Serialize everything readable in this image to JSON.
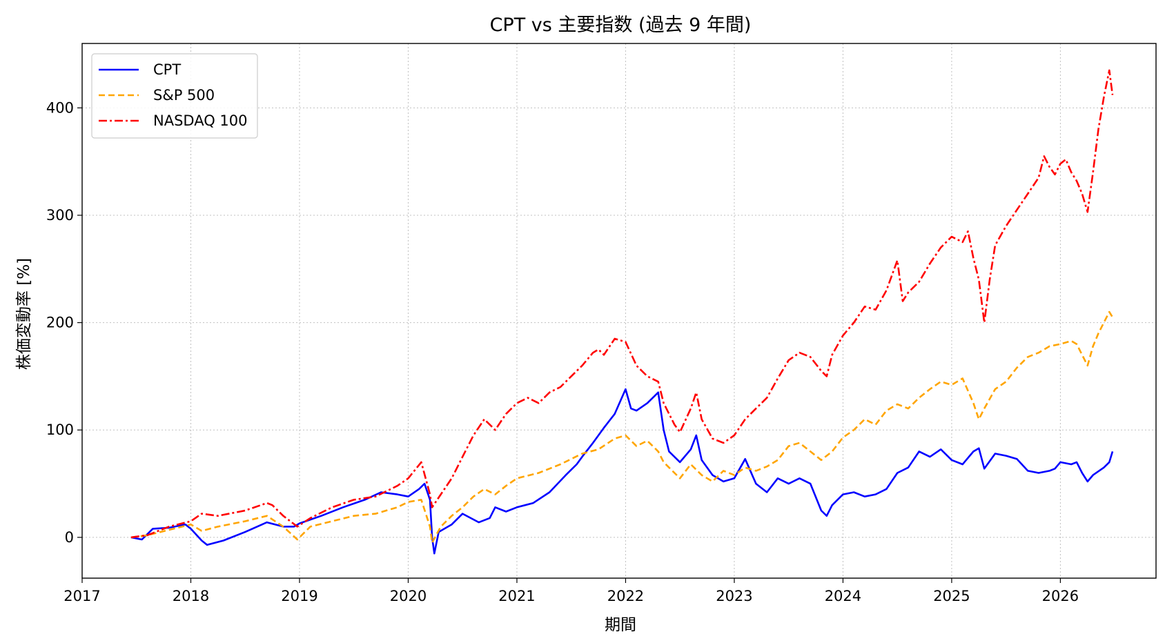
{
  "chart_data": {
    "type": "line",
    "title": "CPT vs 主要指数 (過去 9 年間)",
    "xlabel": "期間",
    "ylabel": "株価変動率 [%]",
    "xlim": [
      2017.0,
      2026.88
    ],
    "ylim": [
      -38,
      460
    ],
    "x_ticks": [
      2017,
      2018,
      2019,
      2020,
      2021,
      2022,
      2023,
      2024,
      2025,
      2026
    ],
    "x_tick_labels": [
      "2017",
      "2018",
      "2019",
      "2020",
      "2021",
      "2022",
      "2023",
      "2024",
      "2025",
      "2026"
    ],
    "y_ticks": [
      0,
      100,
      200,
      300,
      400
    ],
    "y_tick_labels": [
      "0",
      "100",
      "200",
      "300",
      "400"
    ],
    "grid": true,
    "legend_position": "top-left",
    "series": [
      {
        "name": "CPT",
        "color": "#0000ff",
        "style": "solid",
        "points": [
          [
            2017.45,
            0
          ],
          [
            2017.55,
            -2
          ],
          [
            2017.65,
            8
          ],
          [
            2017.8,
            9
          ],
          [
            2017.95,
            12
          ],
          [
            2018.0,
            8
          ],
          [
            2018.1,
            -3
          ],
          [
            2018.15,
            -7
          ],
          [
            2018.3,
            -3
          ],
          [
            2018.5,
            5
          ],
          [
            2018.7,
            14
          ],
          [
            2018.85,
            10
          ],
          [
            2018.95,
            10
          ],
          [
            2019.0,
            13
          ],
          [
            2019.2,
            20
          ],
          [
            2019.4,
            28
          ],
          [
            2019.6,
            35
          ],
          [
            2019.75,
            42
          ],
          [
            2019.9,
            40
          ],
          [
            2020.0,
            38
          ],
          [
            2020.1,
            45
          ],
          [
            2020.15,
            50
          ],
          [
            2020.2,
            35
          ],
          [
            2020.22,
            0
          ],
          [
            2020.24,
            -15
          ],
          [
            2020.28,
            5
          ],
          [
            2020.4,
            12
          ],
          [
            2020.5,
            22
          ],
          [
            2020.65,
            14
          ],
          [
            2020.75,
            18
          ],
          [
            2020.8,
            28
          ],
          [
            2020.9,
            24
          ],
          [
            2021.0,
            28
          ],
          [
            2021.15,
            32
          ],
          [
            2021.3,
            42
          ],
          [
            2021.45,
            58
          ],
          [
            2021.55,
            68
          ],
          [
            2021.6,
            75
          ],
          [
            2021.7,
            88
          ],
          [
            2021.8,
            102
          ],
          [
            2021.9,
            115
          ],
          [
            2022.0,
            138
          ],
          [
            2022.05,
            120
          ],
          [
            2022.1,
            118
          ],
          [
            2022.2,
            125
          ],
          [
            2022.3,
            135
          ],
          [
            2022.35,
            100
          ],
          [
            2022.4,
            80
          ],
          [
            2022.5,
            70
          ],
          [
            2022.6,
            82
          ],
          [
            2022.65,
            95
          ],
          [
            2022.7,
            72
          ],
          [
            2022.8,
            58
          ],
          [
            2022.9,
            52
          ],
          [
            2023.0,
            55
          ],
          [
            2023.1,
            73
          ],
          [
            2023.2,
            50
          ],
          [
            2023.3,
            42
          ],
          [
            2023.4,
            55
          ],
          [
            2023.5,
            50
          ],
          [
            2023.6,
            55
          ],
          [
            2023.7,
            50
          ],
          [
            2023.8,
            25
          ],
          [
            2023.85,
            20
          ],
          [
            2023.9,
            30
          ],
          [
            2024.0,
            40
          ],
          [
            2024.1,
            42
          ],
          [
            2024.2,
            38
          ],
          [
            2024.3,
            40
          ],
          [
            2024.4,
            45
          ],
          [
            2024.5,
            60
          ],
          [
            2024.6,
            65
          ],
          [
            2024.7,
            80
          ],
          [
            2024.8,
            75
          ],
          [
            2024.9,
            82
          ],
          [
            2025.0,
            72
          ],
          [
            2025.1,
            68
          ],
          [
            2025.2,
            80
          ],
          [
            2025.25,
            83
          ],
          [
            2025.3,
            64
          ],
          [
            2025.4,
            78
          ],
          [
            2025.5,
            76
          ],
          [
            2025.6,
            73
          ],
          [
            2025.7,
            62
          ],
          [
            2025.8,
            60
          ],
          [
            2025.9,
            62
          ],
          [
            2025.95,
            64
          ],
          [
            2026.0,
            70
          ],
          [
            2026.1,
            68
          ],
          [
            2026.15,
            70
          ],
          [
            2026.2,
            60
          ],
          [
            2026.25,
            52
          ],
          [
            2026.3,
            58
          ],
          [
            2026.4,
            65
          ],
          [
            2026.45,
            70
          ],
          [
            2026.48,
            80
          ]
        ]
      },
      {
        "name": "S&P 500",
        "color": "#ffa500",
        "style": "dashed",
        "points": [
          [
            2017.45,
            0
          ],
          [
            2017.6,
            2
          ],
          [
            2017.8,
            7
          ],
          [
            2018.0,
            12
          ],
          [
            2018.1,
            6
          ],
          [
            2018.25,
            10
          ],
          [
            2018.5,
            15
          ],
          [
            2018.7,
            20
          ],
          [
            2018.85,
            10
          ],
          [
            2018.98,
            -2
          ],
          [
            2019.1,
            10
          ],
          [
            2019.3,
            15
          ],
          [
            2019.5,
            20
          ],
          [
            2019.7,
            22
          ],
          [
            2019.9,
            28
          ],
          [
            2020.0,
            33
          ],
          [
            2020.12,
            35
          ],
          [
            2020.2,
            10
          ],
          [
            2020.22,
            -5
          ],
          [
            2020.3,
            10
          ],
          [
            2020.4,
            20
          ],
          [
            2020.5,
            28
          ],
          [
            2020.6,
            38
          ],
          [
            2020.7,
            45
          ],
          [
            2020.8,
            40
          ],
          [
            2020.9,
            48
          ],
          [
            2021.0,
            55
          ],
          [
            2021.2,
            60
          ],
          [
            2021.4,
            68
          ],
          [
            2021.6,
            78
          ],
          [
            2021.75,
            82
          ],
          [
            2021.9,
            92
          ],
          [
            2022.0,
            95
          ],
          [
            2022.1,
            85
          ],
          [
            2022.2,
            90
          ],
          [
            2022.3,
            80
          ],
          [
            2022.35,
            70
          ],
          [
            2022.45,
            60
          ],
          [
            2022.5,
            55
          ],
          [
            2022.6,
            68
          ],
          [
            2022.7,
            58
          ],
          [
            2022.8,
            52
          ],
          [
            2022.9,
            62
          ],
          [
            2023.0,
            58
          ],
          [
            2023.1,
            65
          ],
          [
            2023.2,
            62
          ],
          [
            2023.3,
            66
          ],
          [
            2023.4,
            72
          ],
          [
            2023.5,
            85
          ],
          [
            2023.6,
            88
          ],
          [
            2023.7,
            80
          ],
          [
            2023.8,
            72
          ],
          [
            2023.9,
            80
          ],
          [
            2024.0,
            93
          ],
          [
            2024.1,
            100
          ],
          [
            2024.2,
            110
          ],
          [
            2024.3,
            105
          ],
          [
            2024.4,
            118
          ],
          [
            2024.5,
            124
          ],
          [
            2024.6,
            120
          ],
          [
            2024.7,
            130
          ],
          [
            2024.8,
            138
          ],
          [
            2024.9,
            145
          ],
          [
            2025.0,
            142
          ],
          [
            2025.1,
            148
          ],
          [
            2025.2,
            125
          ],
          [
            2025.25,
            110
          ],
          [
            2025.3,
            120
          ],
          [
            2025.4,
            138
          ],
          [
            2025.5,
            145
          ],
          [
            2025.6,
            158
          ],
          [
            2025.7,
            168
          ],
          [
            2025.8,
            172
          ],
          [
            2025.9,
            178
          ],
          [
            2026.0,
            180
          ],
          [
            2026.1,
            183
          ],
          [
            2026.15,
            180
          ],
          [
            2026.2,
            170
          ],
          [
            2026.25,
            160
          ],
          [
            2026.3,
            178
          ],
          [
            2026.35,
            190
          ],
          [
            2026.4,
            200
          ],
          [
            2026.45,
            210
          ],
          [
            2026.48,
            205
          ]
        ]
      },
      {
        "name": "NASDAQ 100",
        "color": "#ff0000",
        "style": "dashdot",
        "points": [
          [
            2017.45,
            0
          ],
          [
            2017.6,
            2
          ],
          [
            2017.8,
            10
          ],
          [
            2018.0,
            15
          ],
          [
            2018.1,
            22
          ],
          [
            2018.25,
            20
          ],
          [
            2018.5,
            25
          ],
          [
            2018.7,
            32
          ],
          [
            2018.75,
            30
          ],
          [
            2018.85,
            20
          ],
          [
            2018.98,
            10
          ],
          [
            2019.1,
            18
          ],
          [
            2019.3,
            28
          ],
          [
            2019.5,
            35
          ],
          [
            2019.7,
            38
          ],
          [
            2019.9,
            48
          ],
          [
            2020.0,
            55
          ],
          [
            2020.12,
            70
          ],
          [
            2020.2,
            40
          ],
          [
            2020.22,
            28
          ],
          [
            2020.3,
            40
          ],
          [
            2020.4,
            55
          ],
          [
            2020.5,
            75
          ],
          [
            2020.6,
            95
          ],
          [
            2020.7,
            110
          ],
          [
            2020.8,
            100
          ],
          [
            2020.9,
            115
          ],
          [
            2021.0,
            125
          ],
          [
            2021.1,
            130
          ],
          [
            2021.2,
            125
          ],
          [
            2021.3,
            135
          ],
          [
            2021.4,
            140
          ],
          [
            2021.5,
            150
          ],
          [
            2021.6,
            160
          ],
          [
            2021.7,
            172
          ],
          [
            2021.75,
            175
          ],
          [
            2021.8,
            170
          ],
          [
            2021.9,
            185
          ],
          [
            2022.0,
            182
          ],
          [
            2022.1,
            160
          ],
          [
            2022.2,
            150
          ],
          [
            2022.3,
            145
          ],
          [
            2022.35,
            125
          ],
          [
            2022.45,
            105
          ],
          [
            2022.5,
            98
          ],
          [
            2022.6,
            120
          ],
          [
            2022.65,
            135
          ],
          [
            2022.7,
            110
          ],
          [
            2022.8,
            92
          ],
          [
            2022.9,
            88
          ],
          [
            2023.0,
            95
          ],
          [
            2023.1,
            110
          ],
          [
            2023.2,
            120
          ],
          [
            2023.3,
            130
          ],
          [
            2023.4,
            148
          ],
          [
            2023.5,
            165
          ],
          [
            2023.6,
            172
          ],
          [
            2023.7,
            168
          ],
          [
            2023.8,
            155
          ],
          [
            2023.85,
            150
          ],
          [
            2023.9,
            170
          ],
          [
            2024.0,
            188
          ],
          [
            2024.1,
            200
          ],
          [
            2024.2,
            215
          ],
          [
            2024.3,
            212
          ],
          [
            2024.4,
            230
          ],
          [
            2024.5,
            258
          ],
          [
            2024.55,
            220
          ],
          [
            2024.6,
            228
          ],
          [
            2024.7,
            238
          ],
          [
            2024.8,
            255
          ],
          [
            2024.9,
            270
          ],
          [
            2025.0,
            280
          ],
          [
            2025.1,
            275
          ],
          [
            2025.15,
            285
          ],
          [
            2025.2,
            260
          ],
          [
            2025.25,
            240
          ],
          [
            2025.3,
            200
          ],
          [
            2025.35,
            240
          ],
          [
            2025.4,
            272
          ],
          [
            2025.5,
            290
          ],
          [
            2025.6,
            305
          ],
          [
            2025.7,
            320
          ],
          [
            2025.8,
            335
          ],
          [
            2025.85,
            355
          ],
          [
            2025.9,
            345
          ],
          [
            2025.95,
            338
          ],
          [
            2026.0,
            348
          ],
          [
            2026.05,
            352
          ],
          [
            2026.1,
            340
          ],
          [
            2026.15,
            332
          ],
          [
            2026.2,
            320
          ],
          [
            2026.25,
            303
          ],
          [
            2026.3,
            340
          ],
          [
            2026.35,
            380
          ],
          [
            2026.4,
            410
          ],
          [
            2026.45,
            435
          ],
          [
            2026.48,
            412
          ]
        ]
      }
    ]
  }
}
